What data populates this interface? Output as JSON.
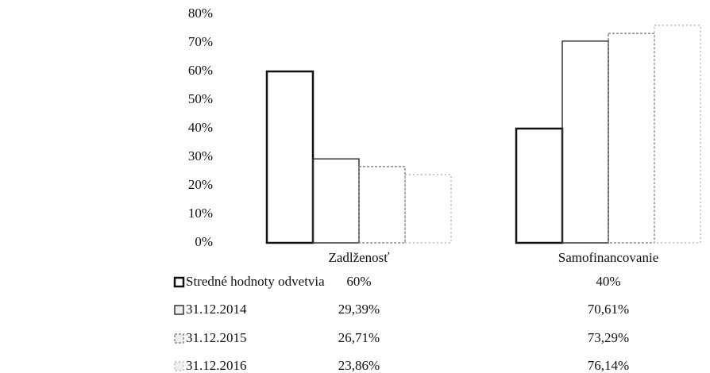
{
  "chart_data": {
    "type": "bar",
    "categories": [
      "Zadlženosť",
      "Samofinancovanie"
    ],
    "series": [
      {
        "name": "Stredné hodnoty odvetvia",
        "color": "#111111",
        "values": [
          60,
          40
        ],
        "value_labels": [
          "60%",
          "40%"
        ]
      },
      {
        "name": "31.12.2014",
        "color": "#333333",
        "values": [
          29.39,
          70.61
        ],
        "value_labels": [
          "29,39%",
          "70,61%"
        ]
      },
      {
        "name": "31.12.2015",
        "color": "#888888",
        "values": [
          26.71,
          73.29
        ],
        "value_labels": [
          "26,71%",
          "73,29%"
        ]
      },
      {
        "name": "31.12.2016",
        "color": "#bbbbbb",
        "values": [
          23.86,
          76.14
        ],
        "value_labels": [
          "23,86%",
          "76,14%"
        ]
      }
    ],
    "ylim": [
      0,
      80
    ],
    "yticks": [
      {
        "value": 0,
        "label": "0%"
      },
      {
        "value": 10,
        "label": "10%"
      },
      {
        "value": 20,
        "label": "20%"
      },
      {
        "value": 30,
        "label": "30%"
      },
      {
        "value": 40,
        "label": "40%"
      },
      {
        "value": 50,
        "label": "50%"
      },
      {
        "value": 60,
        "label": "60%"
      },
      {
        "value": 70,
        "label": "70%"
      },
      {
        "value": 80,
        "label": "80%"
      }
    ],
    "grid": false
  }
}
